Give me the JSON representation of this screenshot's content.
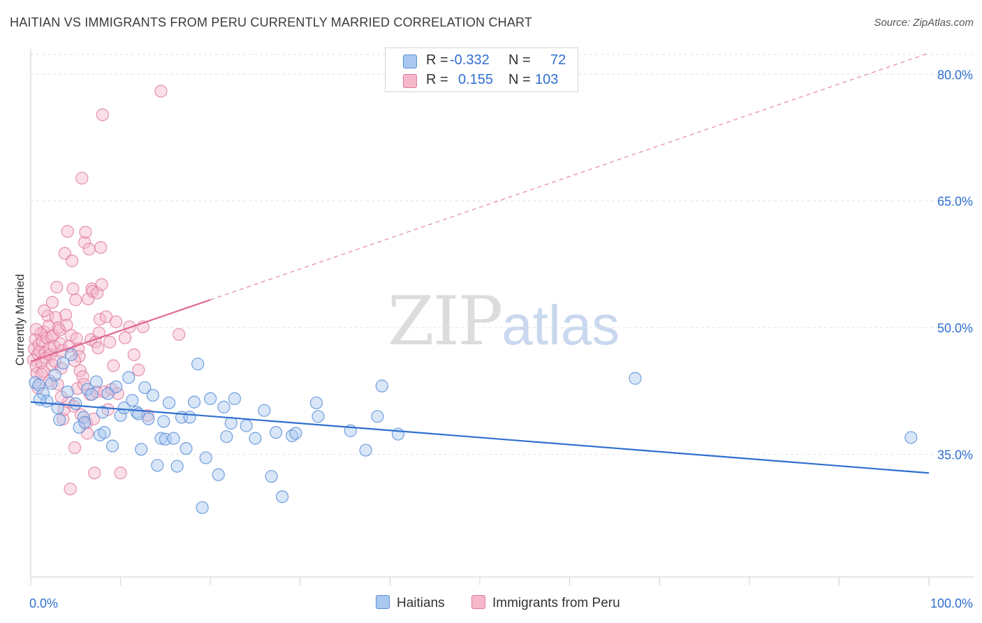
{
  "header": {
    "title": "HAITIAN VS IMMIGRANTS FROM PERU CURRENTLY MARRIED CORRELATION CHART",
    "source": "Source: ZipAtlas.com"
  },
  "watermark": {
    "zip": "ZIP",
    "atlas": "atlas"
  },
  "stats_legend": {
    "rows": [
      {
        "r_label": "R =",
        "r_value": "-0.332",
        "n_label": "N =",
        "n_value": "72",
        "color": "#a9c8f0"
      },
      {
        "r_label": "R =",
        "r_value": "0.155",
        "n_label": "N =",
        "n_value": "103",
        "color": "#f5b8cb"
      }
    ]
  },
  "bottom_legend": [
    {
      "label": "Haitians",
      "color": "#a9c8f0"
    },
    {
      "label": "Immigrants from Peru",
      "color": "#f5b8cb"
    }
  ],
  "colors": {
    "blue_fill": "#a9c8f0",
    "blue_stroke": "#5b8fd8",
    "blue_line": "#2f6fd0",
    "pink_fill": "#f5b8cb",
    "pink_stroke": "#e0789a",
    "pink_line": "#e0668e",
    "tick_label": "#2f6fd0",
    "grid": "#e2e2e2"
  },
  "chart_data": {
    "type": "scatter",
    "title": "HAITIAN VS IMMIGRANTS FROM PERU CURRENTLY MARRIED CORRELATION CHART",
    "xlabel": "",
    "ylabel": "Currently Married",
    "xlim": [
      0,
      100
    ],
    "ylim": [
      20.5,
      83
    ],
    "x_tick_labels": [
      {
        "value": 0,
        "label": "0.0%"
      },
      {
        "value": 100,
        "label": "100.0%"
      }
    ],
    "y_tick_labels": [
      {
        "value": 35,
        "label": "35.0%"
      },
      {
        "value": 50,
        "label": "50.0%"
      },
      {
        "value": 65,
        "label": "65.0%"
      },
      {
        "value": 80,
        "label": "80.0%"
      }
    ],
    "y_gridlines": [
      35,
      50,
      65,
      80
    ],
    "legend_position": "top-center",
    "series": [
      {
        "name": "Haitians",
        "points": [
          [
            0.5,
            43.5
          ],
          [
            0.9,
            43.2
          ],
          [
            1.4,
            42.2
          ],
          [
            1.8,
            41.3
          ],
          [
            2.3,
            43.4
          ],
          [
            2.7,
            44.4
          ],
          [
            3.2,
            39.1
          ],
          [
            3.6,
            45.8
          ],
          [
            4.1,
            42.4
          ],
          [
            4.5,
            46.8
          ],
          [
            5.0,
            41.0
          ],
          [
            5.4,
            38.2
          ],
          [
            5.9,
            39.4
          ],
          [
            6.3,
            42.7
          ],
          [
            6.8,
            42.1
          ],
          [
            7.3,
            43.6
          ],
          [
            7.7,
            37.3
          ],
          [
            8.2,
            37.6
          ],
          [
            8.6,
            42.2
          ],
          [
            9.1,
            36.0
          ],
          [
            9.5,
            43.0
          ],
          [
            10.0,
            39.6
          ],
          [
            10.4,
            40.5
          ],
          [
            10.9,
            44.1
          ],
          [
            11.3,
            41.4
          ],
          [
            11.8,
            40.0
          ],
          [
            12.3,
            35.6
          ],
          [
            12.7,
            42.9
          ],
          [
            13.1,
            39.2
          ],
          [
            13.6,
            42.0
          ],
          [
            14.1,
            33.7
          ],
          [
            14.5,
            36.9
          ],
          [
            15.0,
            36.8
          ],
          [
            15.4,
            41.1
          ],
          [
            15.9,
            36.9
          ],
          [
            16.3,
            33.6
          ],
          [
            16.8,
            39.4
          ],
          [
            17.3,
            35.7
          ],
          [
            17.7,
            39.4
          ],
          [
            18.2,
            41.2
          ],
          [
            18.6,
            45.7
          ],
          [
            19.1,
            28.7
          ],
          [
            19.5,
            34.6
          ],
          [
            20.0,
            41.6
          ],
          [
            20.9,
            32.6
          ],
          [
            21.8,
            37.1
          ],
          [
            22.3,
            38.7
          ],
          [
            22.7,
            41.6
          ],
          [
            25.0,
            36.9
          ],
          [
            26.8,
            32.4
          ],
          [
            27.3,
            37.6
          ],
          [
            28.0,
            30.0
          ],
          [
            29.1,
            37.2
          ],
          [
            29.5,
            37.5
          ],
          [
            31.8,
            41.1
          ],
          [
            32.0,
            39.5
          ],
          [
            35.6,
            37.8
          ],
          [
            37.3,
            35.5
          ],
          [
            38.6,
            39.5
          ],
          [
            39.1,
            43.1
          ],
          [
            40.9,
            37.4
          ],
          [
            67.3,
            44.0
          ],
          [
            98.0,
            37.0
          ],
          [
            1.0,
            41.5
          ],
          [
            3.0,
            40.5
          ],
          [
            8.0,
            40.0
          ],
          [
            12.0,
            39.8
          ],
          [
            21.5,
            40.6
          ],
          [
            6.0,
            38.8
          ],
          [
            24.0,
            38.4
          ],
          [
            14.8,
            38.9
          ],
          [
            26.0,
            40.2
          ]
        ],
        "trend": {
          "x_start": 0,
          "y_start": 41.2,
          "x_end": 100,
          "y_end": 32.8
        }
      },
      {
        "name": "Immigrants from Peru",
        "points": [
          [
            0.3,
            46.2
          ],
          [
            0.4,
            47.5
          ],
          [
            0.5,
            48.6
          ],
          [
            0.6,
            45.4
          ],
          [
            0.7,
            44.6
          ],
          [
            0.8,
            46.9
          ],
          [
            0.9,
            48.0
          ],
          [
            1.0,
            47.2
          ],
          [
            1.1,
            49.3
          ],
          [
            1.2,
            45.9
          ],
          [
            1.3,
            48.4
          ],
          [
            1.4,
            44.8
          ],
          [
            1.5,
            49.5
          ],
          [
            1.6,
            47.0
          ],
          [
            1.7,
            46.4
          ],
          [
            1.8,
            48.8
          ],
          [
            1.9,
            51.4
          ],
          [
            2.0,
            50.2
          ],
          [
            2.1,
            47.6
          ],
          [
            2.2,
            46.8
          ],
          [
            2.3,
            48.9
          ],
          [
            2.4,
            45.6
          ],
          [
            2.5,
            49.1
          ],
          [
            2.6,
            47.8
          ],
          [
            2.7,
            46.0
          ],
          [
            2.8,
            51.2
          ],
          [
            2.9,
            54.8
          ],
          [
            3.0,
            43.3
          ],
          [
            3.1,
            50.0
          ],
          [
            3.2,
            49.7
          ],
          [
            3.3,
            48.1
          ],
          [
            3.4,
            45.2
          ],
          [
            3.5,
            47.3
          ],
          [
            3.6,
            39.2
          ],
          [
            3.7,
            40.3
          ],
          [
            3.8,
            58.8
          ],
          [
            3.9,
            51.5
          ],
          [
            4.0,
            50.3
          ],
          [
            4.1,
            61.4
          ],
          [
            4.2,
            41.2
          ],
          [
            4.3,
            47.8
          ],
          [
            4.4,
            30.9
          ],
          [
            4.5,
            49.1
          ],
          [
            4.6,
            57.9
          ],
          [
            4.7,
            54.6
          ],
          [
            4.8,
            40.7
          ],
          [
            4.9,
            35.8
          ],
          [
            5.0,
            53.3
          ],
          [
            5.1,
            48.7
          ],
          [
            5.2,
            42.8
          ],
          [
            5.3,
            47.5
          ],
          [
            5.4,
            46.6
          ],
          [
            5.5,
            44.9
          ],
          [
            5.6,
            39.7
          ],
          [
            5.7,
            67.7
          ],
          [
            5.8,
            44.2
          ],
          [
            5.9,
            43.3
          ],
          [
            6.0,
            60.1
          ],
          [
            6.1,
            61.3
          ],
          [
            6.2,
            38.7
          ],
          [
            6.3,
            37.5
          ],
          [
            6.4,
            53.4
          ],
          [
            6.5,
            59.3
          ],
          [
            6.6,
            42.1
          ],
          [
            6.7,
            48.6
          ],
          [
            6.8,
            54.6
          ],
          [
            6.9,
            54.3
          ],
          [
            7.0,
            39.2
          ],
          [
            7.1,
            32.8
          ],
          [
            7.2,
            48.3
          ],
          [
            7.3,
            42.4
          ],
          [
            7.4,
            54.1
          ],
          [
            7.5,
            47.6
          ],
          [
            7.6,
            49.4
          ],
          [
            7.7,
            51.0
          ],
          [
            7.8,
            59.5
          ],
          [
            7.9,
            55.1
          ],
          [
            8.0,
            75.2
          ],
          [
            8.2,
            42.4
          ],
          [
            8.4,
            51.3
          ],
          [
            8.6,
            40.3
          ],
          [
            8.8,
            48.3
          ],
          [
            9.0,
            42.7
          ],
          [
            9.2,
            45.5
          ],
          [
            9.5,
            50.7
          ],
          [
            9.7,
            42.2
          ],
          [
            10.0,
            32.8
          ],
          [
            10.5,
            48.8
          ],
          [
            11.0,
            50.1
          ],
          [
            11.5,
            46.8
          ],
          [
            12.0,
            45.0
          ],
          [
            12.5,
            50.1
          ],
          [
            13.0,
            39.6
          ],
          [
            14.5,
            78.0
          ],
          [
            16.5,
            49.2
          ],
          [
            1.2,
            44.5
          ],
          [
            2.1,
            43.7
          ],
          [
            0.8,
            42.9
          ],
          [
            3.4,
            41.8
          ],
          [
            1.5,
            52.0
          ],
          [
            2.4,
            53.0
          ],
          [
            0.6,
            49.8
          ],
          [
            4.9,
            46.1
          ]
        ],
        "trend_solid": {
          "x_start": 0,
          "y_start": 46.0,
          "x_end": 20,
          "y_end": 53.3
        },
        "trend_dashed": {
          "x_start": 20,
          "y_start": 53.3,
          "x_end": 100,
          "y_end": 82.5
        }
      }
    ]
  }
}
